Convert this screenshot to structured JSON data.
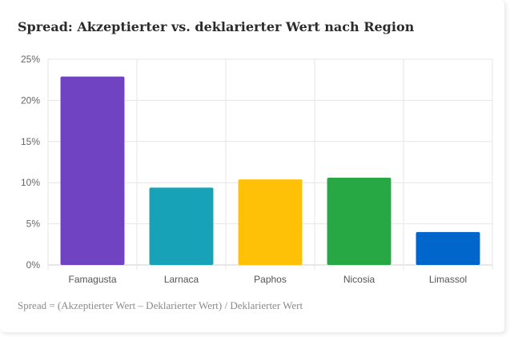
{
  "chart_data": {
    "type": "bar",
    "title": "Spread: Akzeptierter vs. deklarierter Wert nach Region",
    "xlabel": "",
    "ylabel": "",
    "categories": [
      "Famagusta",
      "Larnaca",
      "Paphos",
      "Nicosia",
      "Limassol"
    ],
    "values": [
      22.9,
      9.4,
      10.4,
      10.6,
      4.0
    ],
    "colors": [
      "#7043c3",
      "#17a2b8",
      "#ffc107",
      "#28a745",
      "#0066cc"
    ],
    "ylim": [
      0,
      25
    ],
    "yticks": [
      0,
      5,
      10,
      15,
      20,
      25
    ],
    "ytick_labels": [
      "0%",
      "5%",
      "10%",
      "15%",
      "20%",
      "25%"
    ],
    "grid": true,
    "footnote": "Spread = (Akzeptierter Wert – Deklarierter Wert) / Deklarierter Wert"
  }
}
